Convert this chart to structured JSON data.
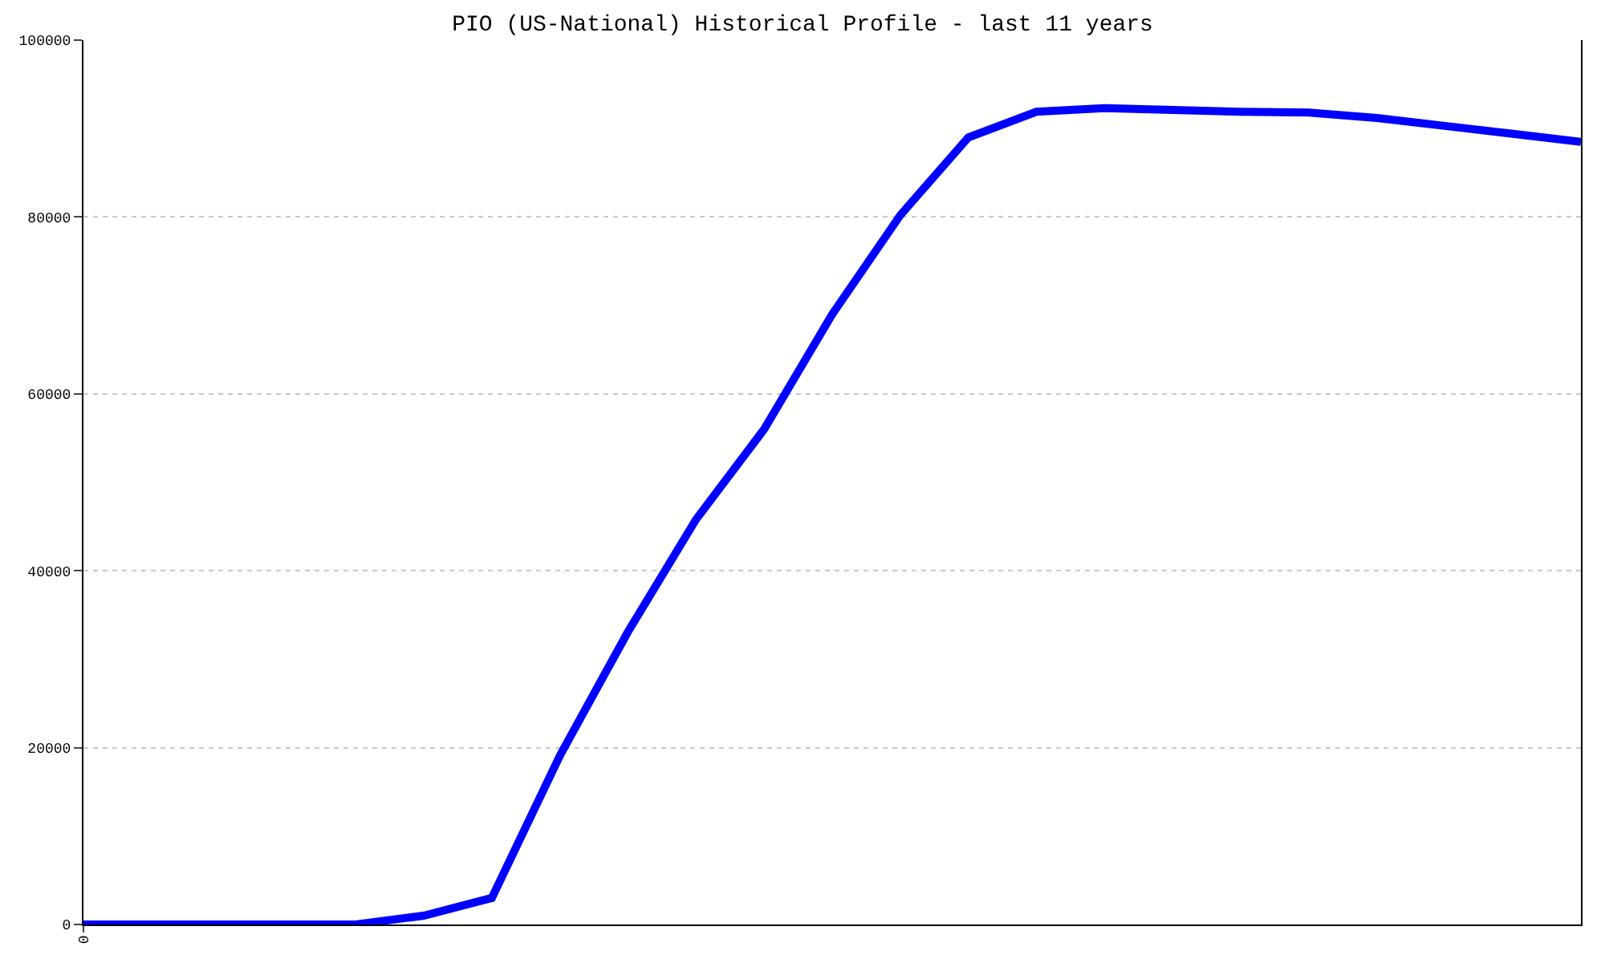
{
  "chart_data": {
    "type": "line",
    "title": "PIO (US-National) Historical Profile - last 11 years",
    "categories": [
      "0",
      null,
      null,
      null,
      null,
      null,
      null,
      null,
      null,
      null,
      null,
      null,
      null,
      null,
      null,
      null,
      null,
      null,
      null,
      null,
      null,
      null,
      null
    ],
    "series": [
      {
        "color": "#0000ff",
        "values": [
          0,
          0,
          0,
          0,
          0,
          1000,
          3000,
          19100,
          33100,
          45800,
          56000,
          69000,
          80200,
          89000,
          91900,
          92300,
          92100,
          91900,
          91800,
          91200,
          90300,
          89400,
          88500
        ]
      }
    ],
    "ylim": [
      0,
      100000
    ],
    "yticks": [
      0,
      20000,
      40000,
      60000,
      80000,
      100000
    ],
    "grid": "y",
    "marker": "none",
    "line_style": "solid"
  }
}
